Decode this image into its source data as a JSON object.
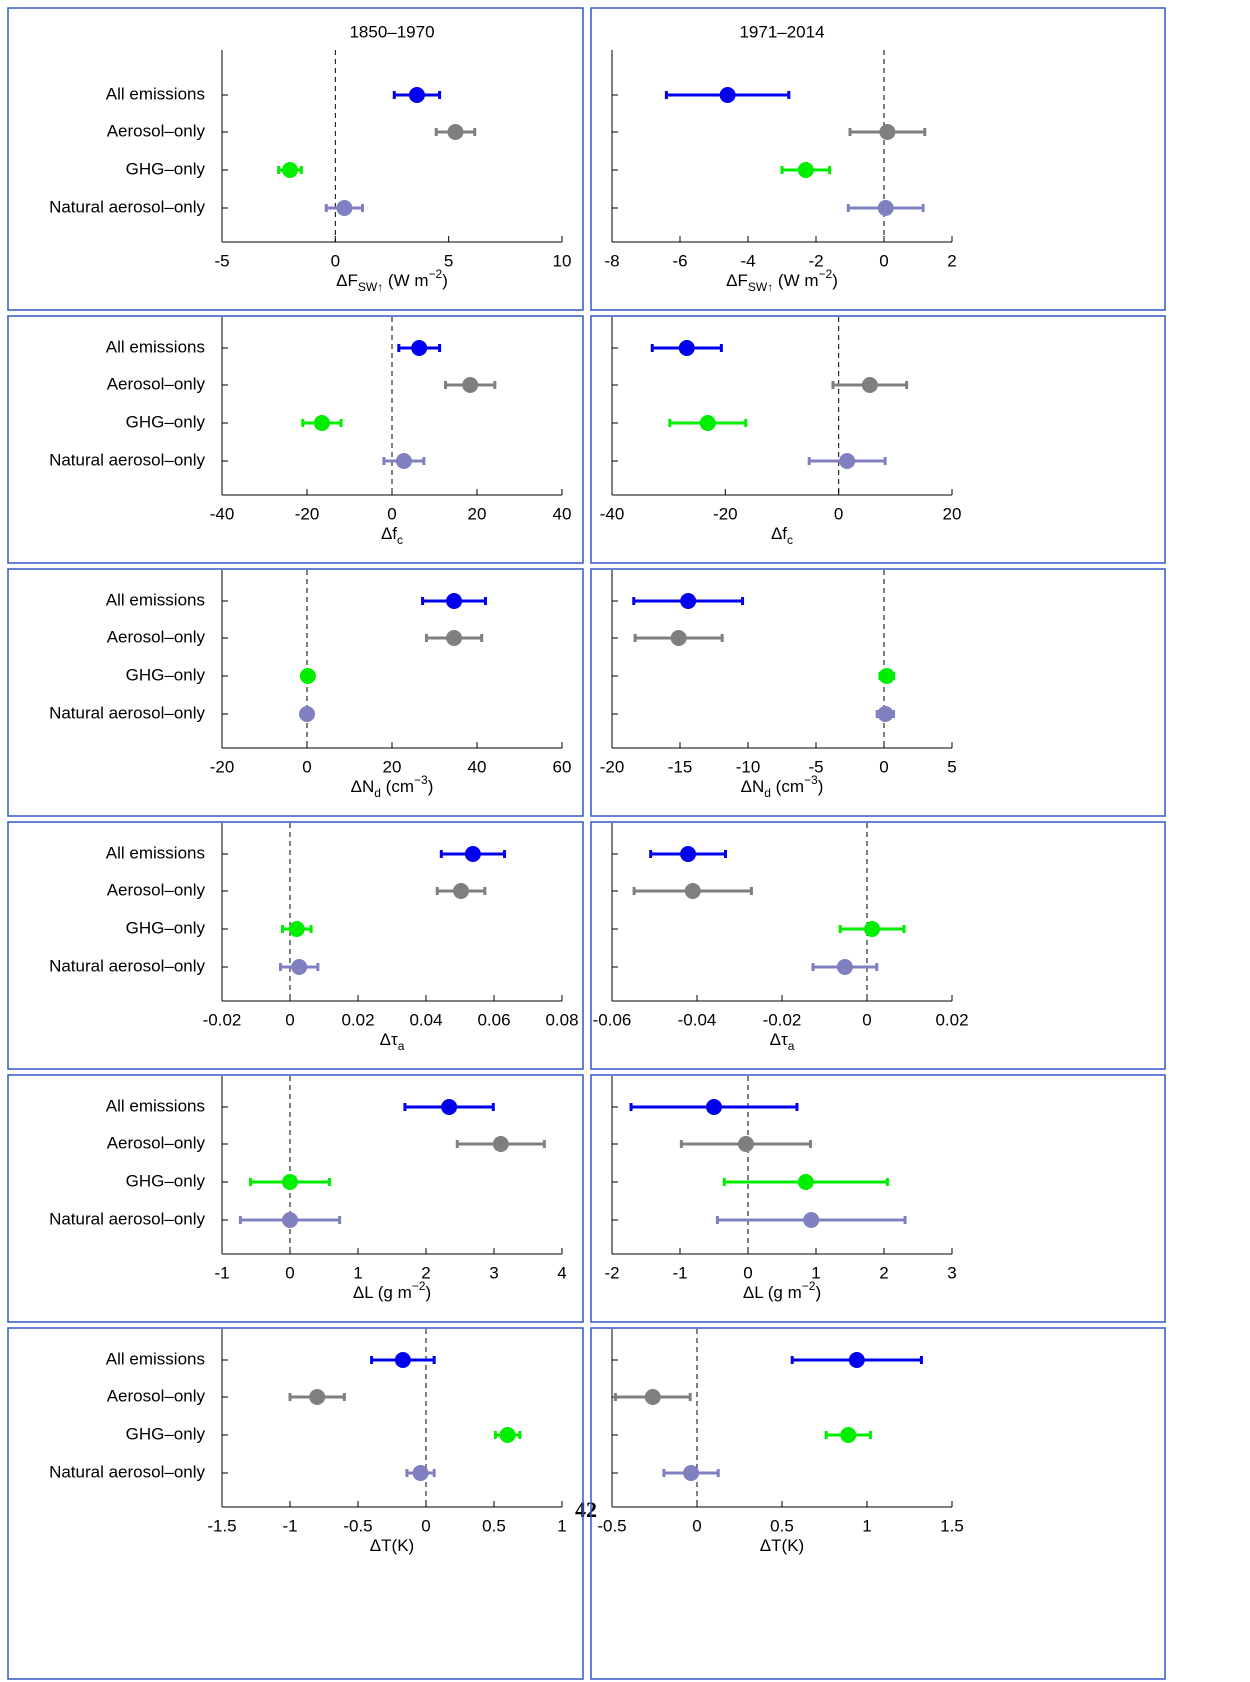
{
  "page_number": "42",
  "chart_data": [
    {
      "type": "errorbar",
      "title": "1850–1970",
      "categories": [
        "All emissions",
        "Aerosol–only",
        "GHG–only",
        "Natural aerosol–only"
      ],
      "xlabel": [
        {
          "text": "ΔF"
        },
        {
          "text": "SW↑",
          "shift": "sub"
        },
        {
          "text": " (W m"
        },
        {
          "text": "−2",
          "shift": "sup"
        },
        {
          "text": ")"
        }
      ],
      "values": [
        3.6,
        5.3,
        -2.0,
        0.4
      ],
      "errors": [
        1.0,
        0.85,
        0.5,
        0.8
      ],
      "colors": [
        "#0000ee",
        "#7f7f7f",
        "#00ee00",
        "#8080c0"
      ],
      "xlim": [
        -5,
        10
      ],
      "xticks": [
        -5,
        0,
        5,
        10
      ]
    },
    {
      "type": "errorbar",
      "title": "1971–2014",
      "xlabel": [
        {
          "text": "ΔF"
        },
        {
          "text": "SW↑",
          "shift": "sub"
        },
        {
          "text": " (W m"
        },
        {
          "text": "−2",
          "shift": "sup"
        },
        {
          "text": ")"
        }
      ],
      "values": [
        -4.6,
        0.1,
        -2.3,
        0.05
      ],
      "errors": [
        1.8,
        1.1,
        0.7,
        1.1
      ],
      "colors": [
        "#0000ee",
        "#7f7f7f",
        "#00ee00",
        "#8080c0"
      ],
      "xlim": [
        -8,
        2
      ],
      "xticks": [
        -8,
        -6,
        -4,
        -2,
        0,
        2
      ]
    },
    {
      "type": "errorbar",
      "categories": [
        "All emissions",
        "Aerosol–only",
        "GHG–only",
        "Natural aerosol–only"
      ],
      "xlabel": [
        {
          "text": "Δf"
        },
        {
          "text": "c",
          "shift": "sub"
        }
      ],
      "values": [
        6.4,
        18.4,
        -16.5,
        2.8
      ],
      "errors": [
        4.8,
        5.8,
        4.5,
        4.7
      ],
      "colors": [
        "#0000ee",
        "#7f7f7f",
        "#00ee00",
        "#8080c0"
      ],
      "xlim": [
        -40,
        40
      ],
      "xticks": [
        -40,
        -20,
        0,
        20,
        40
      ]
    },
    {
      "type": "errorbar",
      "xlabel": [
        {
          "text": "Δf"
        },
        {
          "text": "c",
          "shift": "sub"
        }
      ],
      "values": [
        -26.8,
        5.5,
        -23.1,
        1.5
      ],
      "errors": [
        6.1,
        6.5,
        6.7,
        6.7
      ],
      "colors": [
        "#0000ee",
        "#7f7f7f",
        "#00ee00",
        "#8080c0"
      ],
      "xlim": [
        -40,
        20
      ],
      "xticks": [
        -40,
        -20,
        0,
        20
      ]
    },
    {
      "type": "errorbar",
      "categories": [
        "All emissions",
        "Aerosol–only",
        "GHG–only",
        "Natural aerosol–only"
      ],
      "xlabel": [
        {
          "text": "ΔN"
        },
        {
          "text": "d",
          "shift": "sub"
        },
        {
          "text": " (cm"
        },
        {
          "text": "−3",
          "shift": "sup"
        },
        {
          "text": ")"
        }
      ],
      "values": [
        34.6,
        34.6,
        0.2,
        0.0
      ],
      "errors": [
        7.4,
        6.5,
        0.5,
        0.5
      ],
      "colors": [
        "#0000ee",
        "#7f7f7f",
        "#00ee00",
        "#8080c0"
      ],
      "xlim": [
        -20,
        60
      ],
      "xticks": [
        -20,
        0,
        20,
        40,
        60
      ]
    },
    {
      "type": "errorbar",
      "xlabel": [
        {
          "text": "ΔN"
        },
        {
          "text": "d",
          "shift": "sub"
        },
        {
          "text": " (cm"
        },
        {
          "text": "−3",
          "shift": "sup"
        },
        {
          "text": ")"
        }
      ],
      "values": [
        -14.4,
        -15.1,
        0.2,
        0.1
      ],
      "errors": [
        4.0,
        3.2,
        0.5,
        0.6
      ],
      "colors": [
        "#0000ee",
        "#7f7f7f",
        "#00ee00",
        "#8080c0"
      ],
      "xlim": [
        -20,
        5
      ],
      "xticks": [
        -20,
        -15,
        -10,
        -5,
        0,
        5
      ]
    },
    {
      "type": "errorbar",
      "categories": [
        "All emissions",
        "Aerosol–only",
        "GHG–only",
        "Natural aerosol–only"
      ],
      "xlabel": [
        {
          "text": "Δτ"
        },
        {
          "text": "a",
          "shift": "sub"
        }
      ],
      "values": [
        0.0538,
        0.0503,
        0.002,
        0.0027
      ],
      "errors": [
        0.0093,
        0.007,
        0.0042,
        0.0055
      ],
      "colors": [
        "#0000ee",
        "#7f7f7f",
        "#00ee00",
        "#8080c0"
      ],
      "xlim": [
        -0.02,
        0.08
      ],
      "xticks": [
        -0.02,
        0,
        0.02,
        0.04,
        0.06,
        0.08
      ]
    },
    {
      "type": "errorbar",
      "xlabel": [
        {
          "text": "Δτ"
        },
        {
          "text": "a",
          "shift": "sub"
        }
      ],
      "values": [
        -0.0421,
        -0.041,
        0.0012,
        -0.0052
      ],
      "errors": [
        0.0088,
        0.0138,
        0.0075,
        0.0075
      ],
      "colors": [
        "#0000ee",
        "#7f7f7f",
        "#00ee00",
        "#8080c0"
      ],
      "xlim": [
        -0.06,
        0.02
      ],
      "xticks": [
        -0.06,
        -0.04,
        -0.02,
        0,
        0.02
      ]
    },
    {
      "type": "errorbar",
      "categories": [
        "All emissions",
        "Aerosol–only",
        "GHG–only",
        "Natural aerosol–only"
      ],
      "xlabel": [
        {
          "text": "ΔL (g m"
        },
        {
          "text": "−2",
          "shift": "sup"
        },
        {
          "text": ")"
        }
      ],
      "values": [
        2.34,
        3.1,
        0.0,
        0.0
      ],
      "errors": [
        0.65,
        0.64,
        0.58,
        0.73
      ],
      "colors": [
        "#0000ee",
        "#7f7f7f",
        "#00ee00",
        "#8080c0"
      ],
      "xlim": [
        -1,
        4
      ],
      "xticks": [
        -1,
        0,
        1,
        2,
        3,
        4
      ]
    },
    {
      "type": "errorbar",
      "xlabel": [
        {
          "text": "ΔL (g m"
        },
        {
          "text": "−2",
          "shift": "sup"
        },
        {
          "text": ")"
        }
      ],
      "values": [
        -0.5,
        -0.03,
        0.85,
        0.93
      ],
      "errors": [
        1.22,
        0.95,
        1.2,
        1.38
      ],
      "colors": [
        "#0000ee",
        "#7f7f7f",
        "#00ee00",
        "#8080c0"
      ],
      "xlim": [
        -2,
        3
      ],
      "xticks": [
        -2,
        -1,
        0,
        1,
        2,
        3
      ]
    },
    {
      "type": "errorbar",
      "categories": [
        "All emissions",
        "Aerosol–only",
        "GHG–only",
        "Natural aerosol–only"
      ],
      "xlabel": [
        {
          "text": "ΔT(K)"
        }
      ],
      "values": [
        -0.17,
        -0.8,
        0.6,
        -0.04
      ],
      "errors": [
        0.23,
        0.2,
        0.09,
        0.1
      ],
      "colors": [
        "#0000ee",
        "#7f7f7f",
        "#00ee00",
        "#8080c0"
      ],
      "xlim": [
        -1.5,
        1
      ],
      "xticks": [
        -1.5,
        -1,
        -0.5,
        0,
        0.5,
        1
      ]
    },
    {
      "type": "errorbar",
      "xlabel": [
        {
          "text": "ΔT(K)"
        }
      ],
      "values": [
        0.94,
        -0.26,
        0.89,
        -0.035
      ],
      "errors": [
        0.38,
        0.22,
        0.13,
        0.16
      ],
      "colors": [
        "#0000ee",
        "#7f7f7f",
        "#00ee00",
        "#8080c0"
      ],
      "xlim": [
        -0.5,
        1.5
      ],
      "xticks": [
        -0.5,
        0,
        0.5,
        1,
        1.5
      ]
    }
  ]
}
